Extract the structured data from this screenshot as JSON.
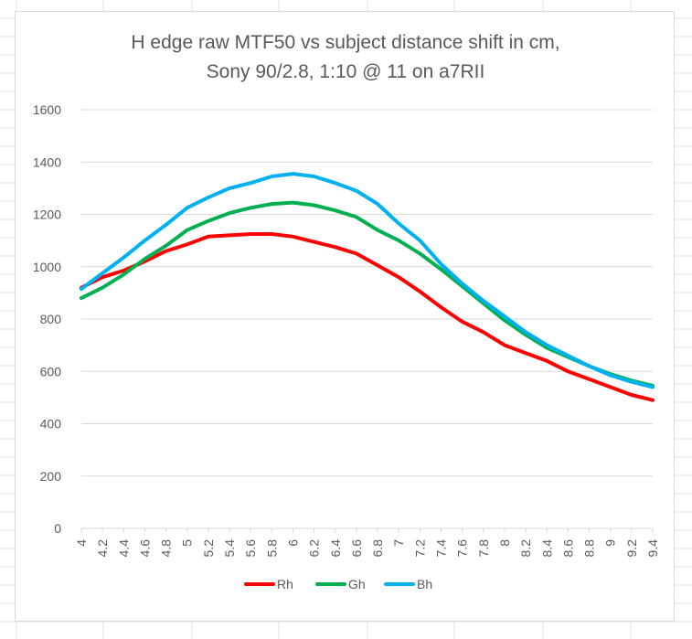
{
  "chart_data": {
    "type": "line",
    "title": [
      "H edge raw MTF50 vs subject distance shift in cm,",
      "Sony 90/2.8, 1:10 @ 11 on a7RII"
    ],
    "xlabel": "",
    "ylabel": "",
    "ylim": [
      0,
      1600
    ],
    "y_ticks": [
      "0",
      "200",
      "400",
      "600",
      "800",
      "1000",
      "1200",
      "1400",
      "1600"
    ],
    "x_tick_labels": [
      "4",
      "4.2",
      "4.4",
      "4.6",
      "4.8",
      "5",
      "5.2",
      "5.4",
      "5.6",
      "5.8",
      "6",
      "6.2",
      "6.4",
      "6.6",
      "6.8",
      "7",
      "7.2",
      "7.4",
      "7.6",
      "7.8",
      "8",
      "8.2",
      "8.4",
      "8.6",
      "8.8",
      "9",
      "9.2",
      "9.4"
    ],
    "x": [
      4.0,
      4.2,
      4.4,
      4.6,
      4.8,
      5.0,
      5.2,
      5.4,
      5.6,
      5.8,
      6.0,
      6.2,
      6.4,
      6.6,
      6.8,
      7.0,
      7.2,
      7.4,
      7.6,
      7.8,
      8.0,
      8.2,
      8.4,
      8.6,
      8.8,
      9.0,
      9.2,
      9.4
    ],
    "grid": true,
    "legend_position": "bottom",
    "series": [
      {
        "name": "Rh",
        "color": "#ff0000",
        "values": [
          920,
          960,
          985,
          1020,
          1060,
          1085,
          1115,
          1120,
          1125,
          1125,
          1115,
          1095,
          1075,
          1050,
          1005,
          960,
          905,
          845,
          790,
          750,
          700,
          670,
          640,
          600,
          570,
          540,
          510,
          490
        ]
      },
      {
        "name": "Gh",
        "color": "#00b050",
        "values": [
          880,
          920,
          970,
          1030,
          1080,
          1140,
          1175,
          1205,
          1225,
          1240,
          1245,
          1235,
          1215,
          1190,
          1140,
          1100,
          1050,
          990,
          925,
          860,
          795,
          740,
          690,
          655,
          620,
          590,
          565,
          545
        ]
      },
      {
        "name": "Bh",
        "color": "#00b0f0",
        "values": [
          915,
          975,
          1035,
          1100,
          1160,
          1225,
          1265,
          1300,
          1320,
          1345,
          1355,
          1345,
          1320,
          1290,
          1240,
          1165,
          1100,
          1010,
          935,
          870,
          810,
          750,
          700,
          660,
          620,
          585,
          560,
          540
        ]
      }
    ]
  }
}
